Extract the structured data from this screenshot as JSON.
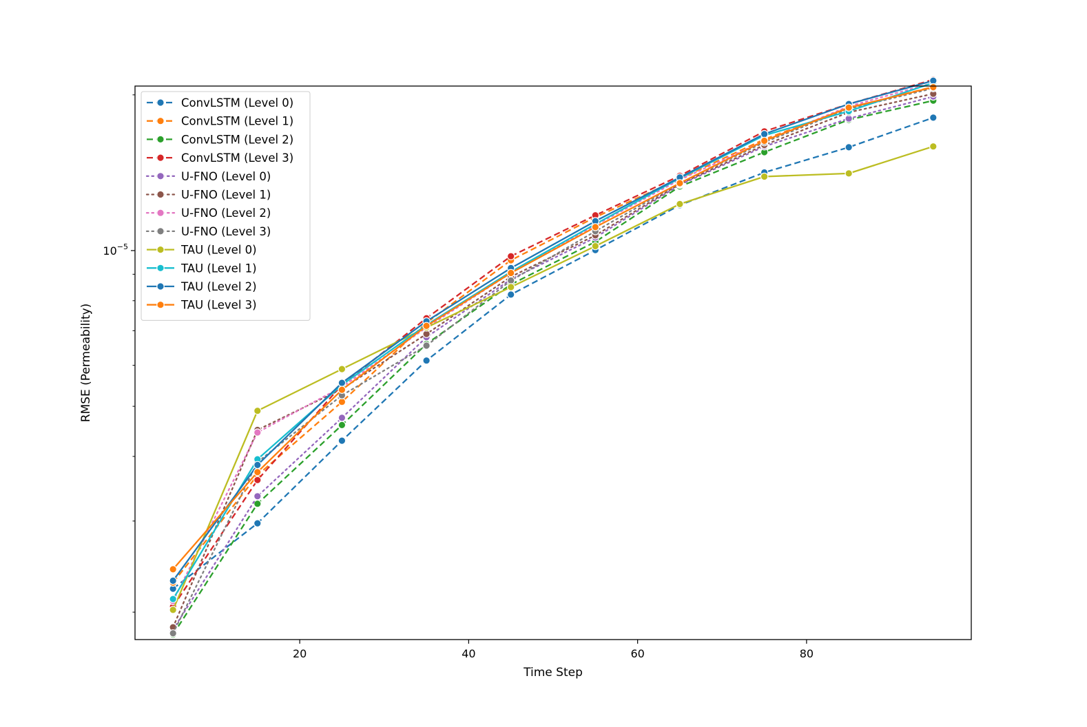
{
  "chart_data": {
    "type": "line",
    "title": "",
    "xlabel": "Time Step",
    "ylabel": "RMSE (Permeability)",
    "yscale": "log",
    "xlim": [
      0.5,
      99.5
    ],
    "ylim": [
      1.77e-06,
      2.08e-05
    ],
    "x_ticks": [
      {
        "value": 20,
        "label": "20"
      },
      {
        "value": 40,
        "label": "40"
      },
      {
        "value": 60,
        "label": "60"
      },
      {
        "value": 80,
        "label": "80"
      }
    ],
    "y_major_tick": {
      "value": 1e-05,
      "label_base": "10",
      "label_exp": "−5"
    },
    "y_minor_ticks": [
      2e-06,
      3e-06,
      4e-06,
      5e-06,
      6e-06,
      7e-06,
      8e-06,
      9e-06,
      2e-05
    ],
    "grid": false,
    "legend_position": "upper-left",
    "x": [
      5,
      15,
      25,
      35,
      45,
      55,
      65,
      75,
      85,
      95
    ],
    "series": [
      {
        "name": "ConvLSTM (Level 0)",
        "color": "#1f77b4",
        "style": "dashed",
        "values": [
          2.22e-06,
          2.97e-06,
          4.29e-06,
          6.13e-06,
          8.22e-06,
          1.002e-05,
          1.224e-05,
          1.416e-05,
          1.584e-05,
          1.807e-05
        ]
      },
      {
        "name": "ConvLSTM (Level 1)",
        "color": "#ff7f0e",
        "style": "dashed",
        "values": [
          2.28e-06,
          3.68e-06,
          5.1e-06,
          7.25e-06,
          9.58e-06,
          1.16e-05,
          1.377e-05,
          1.641e-05,
          1.886e-05,
          2.073e-05
        ]
      },
      {
        "name": "ConvLSTM (Level 2)",
        "color": "#2ca02c",
        "style": "dashed",
        "values": [
          1.81e-06,
          3.24e-06,
          4.6e-06,
          6.6e-06,
          8.6e-06,
          1.04e-05,
          1.33e-05,
          1.55e-05,
          1.79e-05,
          1.95e-05
        ]
      },
      {
        "name": "ConvLSTM (Level 3)",
        "color": "#d62728",
        "style": "dashed",
        "values": [
          2.05e-06,
          3.6e-06,
          5.5e-06,
          7.4e-06,
          9.75e-06,
          1.17e-05,
          1.395e-05,
          1.7e-05,
          1.92e-05,
          2.14e-05
        ]
      },
      {
        "name": "U-FNO (Level 0)",
        "color": "#9467bd",
        "style": "dotted",
        "values": [
          1.85e-06,
          3.35e-06,
          4.75e-06,
          6.8e-06,
          8.8e-06,
          1.06e-05,
          1.34e-05,
          1.59e-05,
          1.8e-05,
          1.985e-05
        ]
      },
      {
        "name": "U-FNO (Level 1)",
        "color": "#8c564b",
        "style": "dotted",
        "values": [
          1.87e-06,
          4.5e-06,
          5.4e-06,
          6.9e-06,
          8.9e-06,
          1.07e-05,
          1.345e-05,
          1.6e-05,
          1.85e-05,
          2.01e-05
        ]
      },
      {
        "name": "U-FNO (Level 2)",
        "color": "#e377c2",
        "style": "dotted",
        "values": [
          2.1e-06,
          4.45e-06,
          5.45e-06,
          7.1e-06,
          9.05e-06,
          1.12e-05,
          1.37e-05,
          1.63e-05,
          1.9e-05,
          2.11e-05
        ]
      },
      {
        "name": "U-FNO (Level 3)",
        "color": "#7f7f7f",
        "style": "dotted",
        "values": [
          1.82e-06,
          3.9e-06,
          5.25e-06,
          6.55e-06,
          8.75e-06,
          1.09e-05,
          1.35e-05,
          1.62e-05,
          1.88e-05,
          2.06e-05
        ]
      },
      {
        "name": "TAU (Level 0)",
        "color": "#bcbd22",
        "style": "solid",
        "values": [
          2.02e-06,
          4.9e-06,
          5.9e-06,
          7.1e-06,
          8.5e-06,
          1.02e-05,
          1.23e-05,
          1.39e-05,
          1.41e-05,
          1.59e-05
        ]
      },
      {
        "name": "TAU (Level 1)",
        "color": "#17becf",
        "style": "solid",
        "values": [
          2.12e-06,
          3.95e-06,
          5.5e-06,
          7.18e-06,
          9.1e-06,
          1.125e-05,
          1.38e-05,
          1.67e-05,
          1.86e-05,
          2.11e-05
        ]
      },
      {
        "name": "TAU (Level 2)",
        "color": "#1f77b4",
        "style": "solid",
        "values": [
          2.3e-06,
          3.85e-06,
          5.55e-06,
          7.3e-06,
          9.25e-06,
          1.14e-05,
          1.385e-05,
          1.68e-05,
          1.92e-05,
          2.13e-05
        ]
      },
      {
        "name": "TAU (Level 3)",
        "color": "#ff7f0e",
        "style": "solid",
        "values": [
          2.42e-06,
          3.73e-06,
          5.38e-06,
          7.15e-06,
          9.05e-06,
          1.11e-05,
          1.35e-05,
          1.63e-05,
          1.89e-05,
          2.07e-05
        ]
      }
    ]
  }
}
